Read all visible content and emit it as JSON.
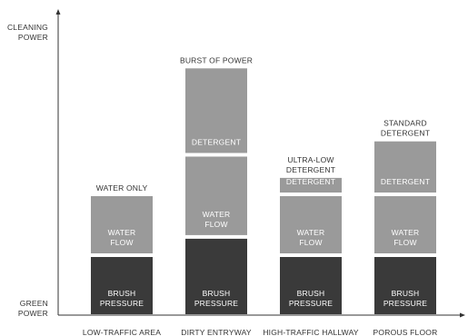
{
  "chart_data": {
    "type": "bar",
    "stacked": true,
    "axes": {
      "y_top_label": [
        "CLEANING",
        "POWER"
      ],
      "y_bottom_label": [
        "GREEN",
        "POWER"
      ]
    },
    "legend": "none",
    "grid": false,
    "categories": [
      {
        "name": "LOW-TRAFFIC AREA",
        "top_label": [
          "WATER ONLY"
        ],
        "segments": [
          {
            "label": [
              "BRUSH",
              "PRESSURE"
            ],
            "value": 1.0,
            "color": "#3a3a3a"
          },
          {
            "label": [
              "WATER",
              "FLOW"
            ],
            "value": 1.0,
            "color": "#9a9a9a"
          }
        ]
      },
      {
        "name": "DIRTY ENTRYWAY",
        "top_label": [
          "BURST OF POWER"
        ],
        "segments": [
          {
            "label": [
              "BRUSH",
              "PRESSURE"
            ],
            "value": 1.3,
            "color": "#3a3a3a"
          },
          {
            "label": [
              "WATER",
              "FLOW"
            ],
            "value": 1.35,
            "color": "#9a9a9a"
          },
          {
            "label": [
              "DETERGENT"
            ],
            "value": 1.45,
            "color": "#9a9a9a"
          }
        ]
      },
      {
        "name": "HIGH-TRAFFIC HALLWAY",
        "top_label": [
          "ULTRA-LOW",
          "DETERGENT"
        ],
        "segments": [
          {
            "label": [
              "BRUSH",
              "PRESSURE"
            ],
            "value": 1.0,
            "color": "#3a3a3a"
          },
          {
            "label": [
              "WATER",
              "FLOW"
            ],
            "value": 1.0,
            "color": "#9a9a9a"
          },
          {
            "label": [
              "DETERGENT"
            ],
            "value": 0.3,
            "color": "#9a9a9a"
          }
        ]
      },
      {
        "name": "POROUS FLOOR",
        "top_label": [
          "STANDARD",
          "DETERGENT"
        ],
        "segments": [
          {
            "label": [
              "BRUSH",
              "PRESSURE"
            ],
            "value": 1.0,
            "color": "#3a3a3a"
          },
          {
            "label": [
              "WATER",
              "FLOW"
            ],
            "value": 1.0,
            "color": "#9a9a9a"
          },
          {
            "label": [
              "DETERGENT"
            ],
            "value": 0.9,
            "color": "#9a9a9a"
          }
        ]
      }
    ],
    "ylim": [
      0,
      4.25
    ]
  }
}
